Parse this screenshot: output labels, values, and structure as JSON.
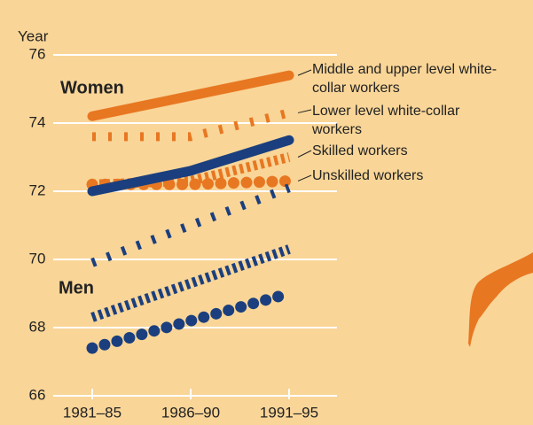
{
  "chart_data": {
    "type": "line",
    "y_label": "Year",
    "categories": [
      "1981–85",
      "1986–90",
      "1991–95"
    ],
    "ylim": [
      66,
      76
    ],
    "yticks": [
      66,
      68,
      70,
      72,
      74,
      76
    ],
    "grid": true,
    "groups": [
      "Women",
      "Men"
    ],
    "legend": [
      "Middle and upper level white-collar workers",
      "Lower level white-collar workers",
      "Skilled workers",
      "Unskilled workers"
    ],
    "series": [
      {
        "group": 0,
        "style": "solid",
        "color": "#e87722",
        "values": [
          74.2,
          74.8,
          75.4
        ]
      },
      {
        "group": 0,
        "style": "sparse",
        "color": "#e87722",
        "values": [
          73.6,
          73.6,
          74.3
        ]
      },
      {
        "group": 0,
        "style": "dense",
        "color": "#e87722",
        "values": [
          72.2,
          72.3,
          73.0
        ]
      },
      {
        "group": 0,
        "style": "dotted",
        "color": "#e87722",
        "values": [
          72.2,
          72.2,
          72.3
        ]
      },
      {
        "group": 1,
        "style": "solid",
        "color": "#1b3f7e",
        "values": [
          72.0,
          72.6,
          73.5
        ]
      },
      {
        "group": 1,
        "style": "sparse",
        "color": "#1b3f7e",
        "values": [
          69.9,
          71.0,
          72.1
        ]
      },
      {
        "group": 1,
        "style": "dense",
        "color": "#1b3f7e",
        "values": [
          68.3,
          69.3,
          70.3
        ]
      },
      {
        "group": 1,
        "style": "dotted",
        "color": "#1b3f7e",
        "values": [
          67.4,
          68.2,
          69.0
        ]
      }
    ]
  }
}
